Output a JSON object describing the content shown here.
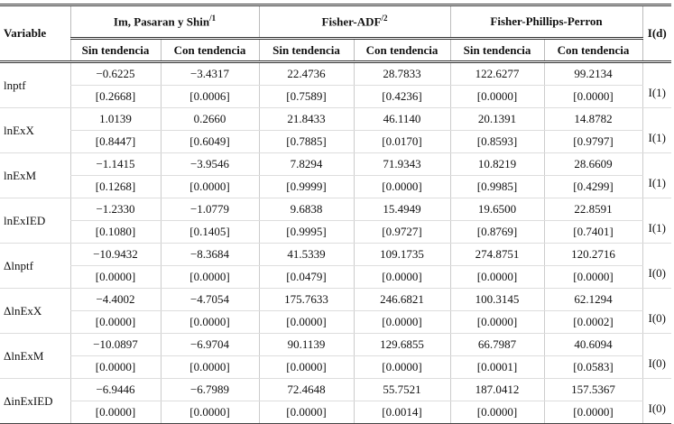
{
  "header": {
    "variable": "Variable",
    "order": "I(d)",
    "groups": [
      {
        "title": "Im, Pasaran y Shin",
        "note": "/1"
      },
      {
        "title": "Fisher-ADF",
        "note": "/2"
      },
      {
        "title": "Fisher-Phillips-Perron"
      }
    ],
    "subheaders": [
      "Sin tendencia",
      "Con tendencia",
      "Sin tendencia",
      "Con tendencia",
      "Sin tendencia",
      "Con tendencia"
    ]
  },
  "table": {
    "rows": [
      {
        "variable": "lnptf",
        "stats": [
          "−0.6225",
          "−3.4317",
          "22.4736",
          "28.7833",
          "122.6277",
          "99.2134"
        ],
        "pvalues": [
          "[0.2668]",
          "[0.0006]",
          "[0.7589]",
          "[0.4236]",
          "[0.0000]",
          "[0.0000]"
        ],
        "order": "I(1)"
      },
      {
        "variable": "lnExX",
        "stats": [
          "1.0139",
          "0.2660",
          "21.8433",
          "46.1140",
          "20.1391",
          "14.8782"
        ],
        "pvalues": [
          "[0.8447]",
          "[0.6049]",
          "[0.7885]",
          "[0.0170]",
          "[0.8593]",
          "[0.9797]"
        ],
        "order": "I(1)"
      },
      {
        "variable": "lnExM",
        "stats": [
          "−1.1415",
          "−3.9546",
          "7.8294",
          "71.9343",
          "10.8219",
          "28.6609"
        ],
        "pvalues": [
          "[0.1268]",
          "[0.0000]",
          "[0.9999]",
          "[0.0000]",
          "[0.9985]",
          "[0.4299]"
        ],
        "order": "I(1)"
      },
      {
        "variable": "lnExIED",
        "stats": [
          "−1.2330",
          "−1.0779",
          "9.6838",
          "15.4949",
          "19.6500",
          "22.8591"
        ],
        "pvalues": [
          "[0.1080]",
          "[0.1405]",
          "[0.9995]",
          "[0.9727]",
          "[0.8769]",
          "[0.7401]"
        ],
        "order": "I(1)"
      },
      {
        "variable": "Δlnptf",
        "stats": [
          "−10.9432",
          "−8.3684",
          "41.5339",
          "109.1735",
          "274.8751",
          "120.2716"
        ],
        "pvalues": [
          "[0.0000]",
          "[0.0000]",
          "[0.0479]",
          "[0.0000]",
          "[0.0000]",
          "[0.0000]"
        ],
        "order": "I(0)"
      },
      {
        "variable": "ΔlnExX",
        "stats": [
          "−4.4002",
          "−4.7054",
          "175.7633",
          "246.6821",
          "100.3145",
          "62.1294"
        ],
        "pvalues": [
          "[0.0000]",
          "[0.0000]",
          "[0.0000]",
          "[0.0000]",
          "[0.0000]",
          "[0.0002]"
        ],
        "order": "I(0)"
      },
      {
        "variable": "ΔlnExM",
        "stats": [
          "−10.0897",
          "−6.9704",
          "90.1139",
          "129.6855",
          "66.7987",
          "40.6094"
        ],
        "pvalues": [
          "[0.0000]",
          "[0.0000]",
          "[0.0000]",
          "[0.0000]",
          "[0.0001]",
          "[0.0583]"
        ],
        "order": "I(0)"
      },
      {
        "variable": "ΔinExIED",
        "stats": [
          "−6.9446",
          "−6.7989",
          "72.4648",
          "55.7521",
          "187.0412",
          "157.5367"
        ],
        "pvalues": [
          "[0.0000]",
          "[0.0000]",
          "[0.0000]",
          "[0.0014]",
          "[0.0000]",
          "[0.0000]"
        ],
        "order": "I(0)"
      }
    ]
  }
}
